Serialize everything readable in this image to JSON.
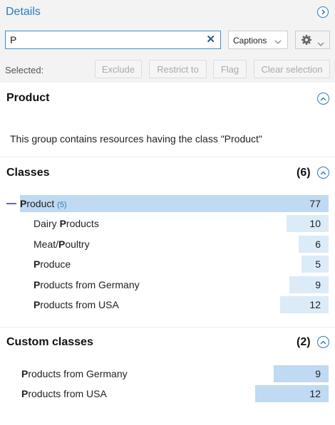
{
  "header": {
    "title": "Details"
  },
  "search": {
    "value": "P"
  },
  "select": {
    "value": "Captions"
  },
  "selected_label": "Selected:",
  "actions": {
    "exclude": "Exclude",
    "restrict": "Restrict to",
    "flag": "Flag",
    "clear": "Clear selection"
  },
  "product_section": {
    "title": "Product",
    "description": "This group contains resources having the class \"Product\""
  },
  "classes": {
    "title": "Classes",
    "count": "(6)",
    "root": {
      "match": "P",
      "rest": "roduct",
      "sub": "(5)",
      "value": "77",
      "fraction": 1.0
    },
    "children": [
      {
        "pre": "Dairy ",
        "match": "P",
        "rest": "roducts",
        "value": "10",
        "fraction": 0.13
      },
      {
        "pre": "Meat/",
        "match": "P",
        "rest": "oultry",
        "value": "6",
        "fraction": 0.078
      },
      {
        "pre": "",
        "match": "P",
        "rest": "roduce",
        "value": "5",
        "fraction": 0.065
      },
      {
        "pre": "",
        "match": "P",
        "rest": "roducts from Germany",
        "value": "9",
        "fraction": 0.117
      },
      {
        "pre": "",
        "match": "P",
        "rest": "roducts from USA",
        "value": "12",
        "fraction": 0.156
      }
    ]
  },
  "custom_classes": {
    "title": "Custom classes",
    "count": "(2)",
    "items": [
      {
        "match": "P",
        "rest": "roducts from Germany",
        "value": "9",
        "fraction": 0.75
      },
      {
        "match": "P",
        "rest": "roducts from USA",
        "value": "12",
        "fraction": 1.0
      }
    ]
  },
  "colors": {
    "accent": "#2a7ab8",
    "bar_dark": "#bfdaf2",
    "bar_light": "#dcebf8"
  }
}
